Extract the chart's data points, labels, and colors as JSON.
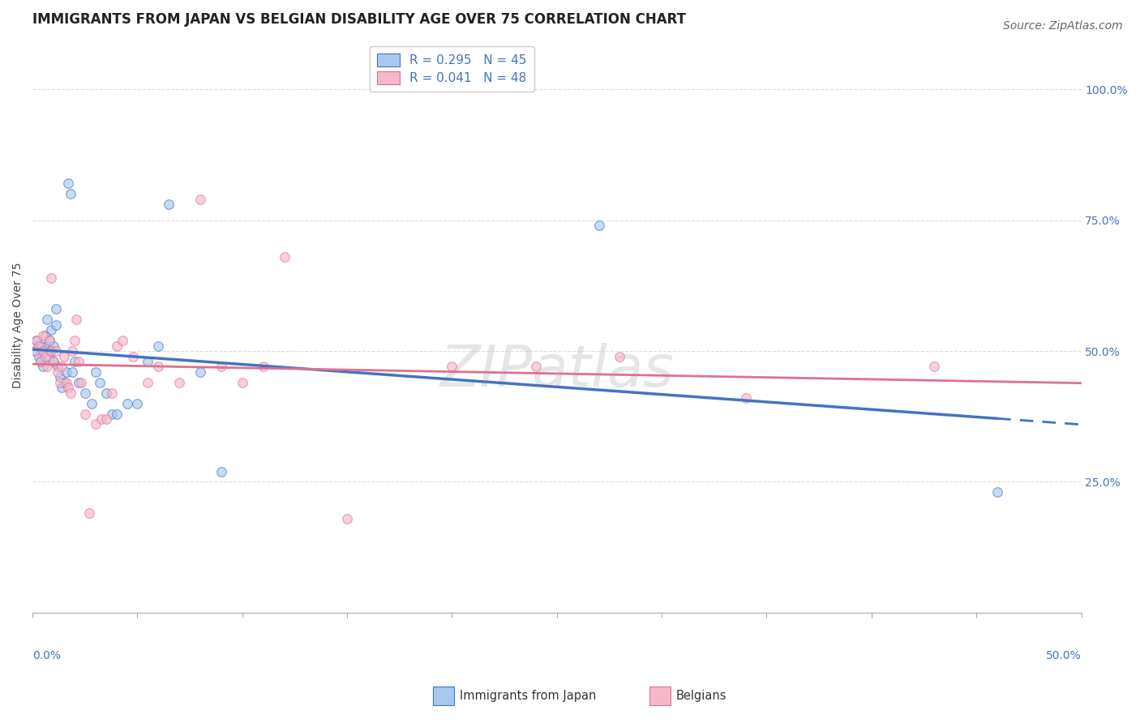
{
  "title": "IMMIGRANTS FROM JAPAN VS BELGIAN DISABILITY AGE OVER 75 CORRELATION CHART",
  "source": "Source: ZipAtlas.com",
  "ylabel": "Disability Age Over 75",
  "ytick_labels": [
    "100.0%",
    "75.0%",
    "50.0%",
    "25.0%"
  ],
  "ytick_values": [
    1.0,
    0.75,
    0.5,
    0.25
  ],
  "xlim": [
    0.0,
    0.5
  ],
  "ylim": [
    0.0,
    1.1
  ],
  "series1_color": "#A8C8F0",
  "series2_color": "#F5B8C8",
  "trendline1_color": "#4472C4",
  "trendline2_color": "#E07090",
  "background_color": "#FFFFFF",
  "grid_color": "#DDDDDD",
  "japan_x": [
    0.001,
    0.002,
    0.003,
    0.004,
    0.004,
    0.005,
    0.005,
    0.006,
    0.006,
    0.007,
    0.007,
    0.008,
    0.008,
    0.009,
    0.009,
    0.01,
    0.01,
    0.011,
    0.011,
    0.012,
    0.013,
    0.014,
    0.015,
    0.016,
    0.017,
    0.018,
    0.019,
    0.02,
    0.022,
    0.025,
    0.028,
    0.03,
    0.032,
    0.035,
    0.038,
    0.04,
    0.045,
    0.05,
    0.055,
    0.06,
    0.065,
    0.08,
    0.09,
    0.27,
    0.46
  ],
  "japan_y": [
    0.5,
    0.52,
    0.49,
    0.51,
    0.48,
    0.5,
    0.47,
    0.5,
    0.53,
    0.51,
    0.56,
    0.49,
    0.52,
    0.5,
    0.54,
    0.48,
    0.51,
    0.58,
    0.55,
    0.47,
    0.45,
    0.43,
    0.44,
    0.46,
    0.82,
    0.8,
    0.46,
    0.48,
    0.44,
    0.42,
    0.4,
    0.46,
    0.44,
    0.42,
    0.38,
    0.38,
    0.4,
    0.4,
    0.48,
    0.51,
    0.78,
    0.46,
    0.27,
    0.74,
    0.23
  ],
  "belgians_x": [
    0.001,
    0.002,
    0.003,
    0.004,
    0.005,
    0.005,
    0.006,
    0.007,
    0.008,
    0.009,
    0.009,
    0.01,
    0.011,
    0.012,
    0.013,
    0.014,
    0.015,
    0.016,
    0.017,
    0.018,
    0.019,
    0.02,
    0.021,
    0.022,
    0.023,
    0.025,
    0.027,
    0.03,
    0.033,
    0.035,
    0.038,
    0.04,
    0.043,
    0.048,
    0.055,
    0.06,
    0.07,
    0.08,
    0.09,
    0.1,
    0.11,
    0.12,
    0.15,
    0.2,
    0.24,
    0.28,
    0.34,
    0.43
  ],
  "belgians_y": [
    0.5,
    0.52,
    0.51,
    0.48,
    0.5,
    0.53,
    0.49,
    0.47,
    0.52,
    0.5,
    0.64,
    0.48,
    0.5,
    0.46,
    0.44,
    0.47,
    0.49,
    0.44,
    0.43,
    0.42,
    0.5,
    0.52,
    0.56,
    0.48,
    0.44,
    0.38,
    0.19,
    0.36,
    0.37,
    0.37,
    0.42,
    0.51,
    0.52,
    0.49,
    0.44,
    0.47,
    0.44,
    0.79,
    0.47,
    0.44,
    0.47,
    0.68,
    0.18,
    0.47,
    0.47,
    0.49,
    0.41,
    0.47
  ],
  "marker_size": 70,
  "marker_alpha": 0.65,
  "marker_edgewidth": 0.8,
  "title_fontsize": 12,
  "axis_label_fontsize": 10,
  "tick_fontsize": 10,
  "legend_fontsize": 11,
  "source_fontsize": 10,
  "legend_label1": "R = 0.295   N = 45",
  "legend_label2": "R = 0.041   N = 48",
  "bottom_label1": "Immigrants from Japan",
  "bottom_label2": "Belgians"
}
